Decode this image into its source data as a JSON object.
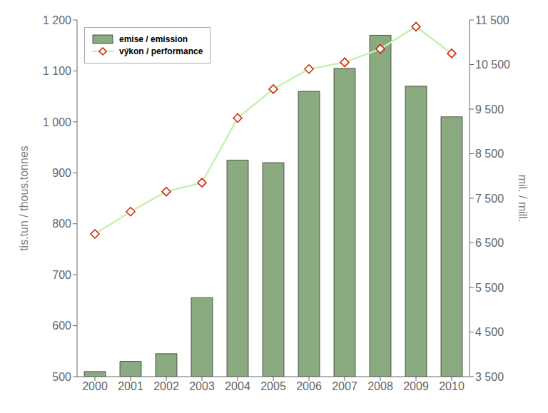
{
  "chart_data": {
    "type": "bar",
    "categories": [
      "2000",
      "2001",
      "2002",
      "2003",
      "2004",
      "2005",
      "2006",
      "2007",
      "2008",
      "2009",
      "2010"
    ],
    "series": [
      {
        "name": "emise / emission",
        "type": "bar",
        "color": "#8aaa80",
        "values": [
          510,
          530,
          545,
          655,
          925,
          920,
          1060,
          1105,
          1170,
          1070,
          1010
        ]
      },
      {
        "name": "výkon / performance",
        "type": "line",
        "color": "#c8f0b0",
        "marker": "diamond",
        "axis": "y2",
        "values": [
          6700,
          7200,
          7650,
          7850,
          9300,
          9950,
          10400,
          10550,
          10850,
          11350,
          10750
        ]
      }
    ],
    "ylim": [
      500,
      1200
    ],
    "yticks": [
      500,
      600,
      700,
      800,
      900,
      {
        "value": 1000,
        "label": "1 000"
      },
      {
        "value": 1100,
        "label": "1 100"
      },
      {
        "value": 1200,
        "label": "1 200"
      }
    ],
    "y2lim": [
      3500,
      11500
    ],
    "y2ticks": [
      {
        "value": 3500,
        "label": "3 500"
      },
      {
        "value": 4500,
        "label": "4 500"
      },
      {
        "value": 5500,
        "label": "5 500"
      },
      {
        "value": 6500,
        "label": "6 500"
      },
      {
        "value": 7500,
        "label": "7 500"
      },
      {
        "value": 8500,
        "label": "8 500"
      },
      {
        "value": 9500,
        "label": "9 500"
      },
      {
        "value": 10500,
        "label": "10 500"
      },
      {
        "value": 11500,
        "label": "11 500"
      }
    ],
    "ylabel": "tis.tun / thous.tonnes",
    "y2label": "mil. / mill.",
    "legend": "upper left",
    "grid": false
  }
}
